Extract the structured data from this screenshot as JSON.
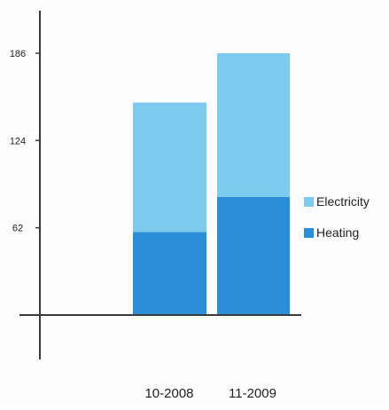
{
  "colors": {
    "background": "#fdfdfd",
    "axis": "#3a3a3a",
    "electricity": "#7ecbf0",
    "heating": "#2a8fd6",
    "text": "#222222"
  },
  "chart_data": {
    "type": "bar",
    "stacked": true,
    "categories": [
      "10-2008",
      "11-2009"
    ],
    "series": [
      {
        "name": "Heating",
        "values": [
          59,
          84
        ],
        "color": "#2a8fd6"
      },
      {
        "name": "Electricity",
        "values": [
          92,
          102
        ],
        "color": "#7ecbf0"
      }
    ],
    "y_ticks": [
      62,
      124,
      186
    ],
    "ylim": [
      -30,
      215
    ],
    "grid": false,
    "legend_position": "right",
    "legend": [
      {
        "name": "Electricity",
        "color": "#7ecbf0"
      },
      {
        "name": "Heating",
        "color": "#2a8fd6"
      }
    ]
  }
}
